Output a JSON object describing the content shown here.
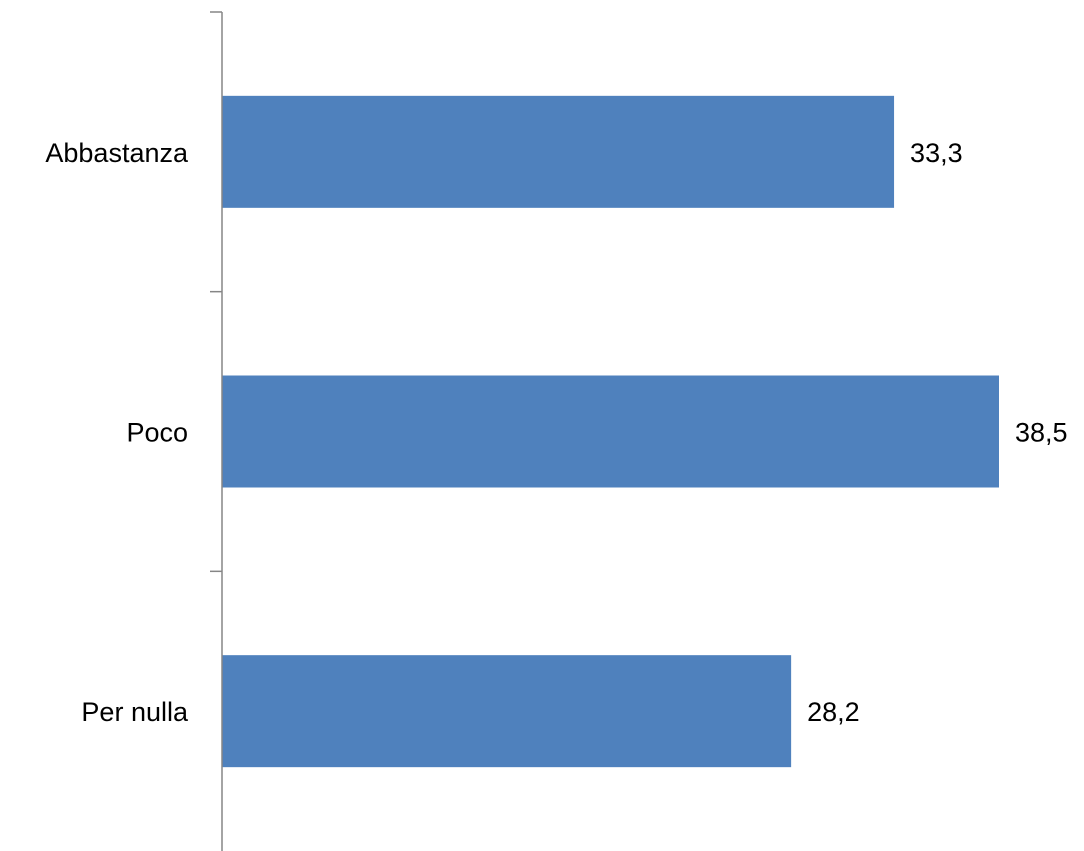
{
  "chart_data": {
    "type": "bar",
    "orientation": "horizontal",
    "categories": [
      "Abbastanza",
      "Poco",
      "Per nulla"
    ],
    "values": [
      33.3,
      38.5,
      28.2
    ],
    "value_labels": [
      "33,3",
      "38,5",
      "28,2"
    ],
    "title": "",
    "xlabel": "",
    "ylabel": "",
    "xlim": [
      0,
      38.5
    ],
    "grid": false,
    "legend": "none",
    "bar_color": "#4F81BD",
    "axis_color": "#868686"
  }
}
